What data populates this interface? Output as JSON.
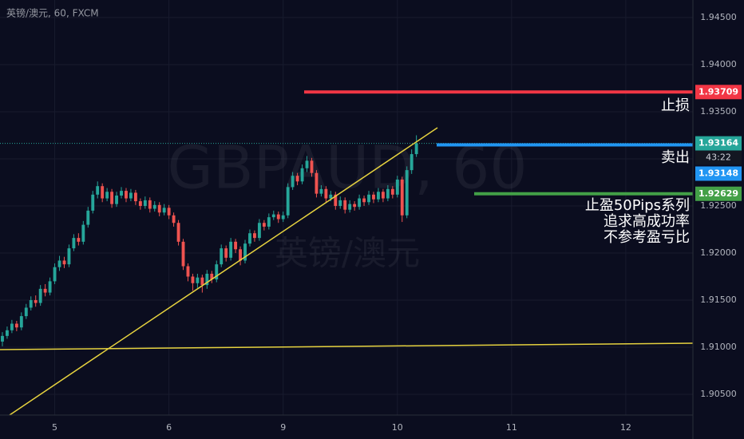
{
  "chart_data": {
    "type": "candlestick",
    "title": "英镑/澳元, 60, FXCM",
    "watermark": "GBPAUD, 60",
    "watermark_subtitle": "英镑/澳元",
    "xlim": [
      -0.5,
      145.1
    ],
    "xticks": [
      {
        "value": 11,
        "label": "5"
      },
      {
        "value": 35,
        "label": "6"
      },
      {
        "value": 59,
        "label": "9"
      },
      {
        "value": 83,
        "label": "10"
      },
      {
        "value": 107,
        "label": "11"
      },
      {
        "value": 131,
        "label": "12"
      }
    ],
    "ylim": [
      1.9028,
      1.94686
    ],
    "yticks": [
      {
        "value": 1.945,
        "label": "1.94500"
      },
      {
        "value": 1.94,
        "label": "1.94000"
      },
      {
        "value": 1.935,
        "label": "1.93500"
      },
      {
        "value": 1.93,
        "label": "1.93000"
      },
      {
        "value": 1.925,
        "label": "1.92500"
      },
      {
        "value": 1.92,
        "label": "1.92000"
      },
      {
        "value": 1.915,
        "label": "1.91500"
      },
      {
        "value": 1.91,
        "label": "1.91000"
      },
      {
        "value": 1.905,
        "label": "1.90500"
      }
    ],
    "grid": true,
    "up_color": "#26a69a",
    "down_color": "#ef5350",
    "open": [
      1.9106,
      1.9112,
      1.9118,
      1.9125,
      1.9121,
      1.9133,
      1.9142,
      1.915,
      1.9147,
      1.9162,
      1.9158,
      1.917,
      1.9185,
      1.9192,
      1.9188,
      1.9205,
      1.9216,
      1.9212,
      1.923,
      1.9245,
      1.9262,
      1.9271,
      1.9258,
      1.9265,
      1.9252,
      1.9261,
      1.9266,
      1.9258,
      1.9264,
      1.9255,
      1.925,
      1.9256,
      1.9247,
      1.9251,
      1.9243,
      1.9248,
      1.924,
      1.9232,
      1.9212,
      1.9186,
      1.9175,
      1.9168,
      1.9174,
      1.9166,
      1.9178,
      1.9172,
      1.9188,
      1.9205,
      1.9195,
      1.9212,
      1.9204,
      1.9192,
      1.921,
      1.9221,
      1.9216,
      1.9232,
      1.9228,
      1.9238,
      1.9241,
      1.9236,
      1.924,
      1.927,
      1.9282,
      1.9276,
      1.929,
      1.9298,
      1.9285,
      1.9263,
      1.9268,
      1.9258,
      1.9262,
      1.925,
      1.9256,
      1.9246,
      1.9252,
      1.9249,
      1.9258,
      1.9254,
      1.9262,
      1.9257,
      1.9265,
      1.9258,
      1.9268,
      1.9262,
      1.9278,
      1.924,
      1.9288,
      1.9305
    ],
    "high": [
      1.9116,
      1.9122,
      1.9129,
      1.9128,
      1.9137,
      1.9146,
      1.9154,
      1.9155,
      1.9166,
      1.9167,
      1.9174,
      1.9189,
      1.9197,
      1.9196,
      1.9209,
      1.922,
      1.9221,
      1.9234,
      1.9249,
      1.9266,
      1.9276,
      1.9274,
      1.9269,
      1.9268,
      1.9265,
      1.927,
      1.9269,
      1.9268,
      1.9267,
      1.9258,
      1.926,
      1.9259,
      1.9255,
      1.9254,
      1.9252,
      1.9251,
      1.9243,
      1.9235,
      1.9215,
      1.9189,
      1.9178,
      1.9178,
      1.9177,
      1.9182,
      1.9181,
      1.9192,
      1.9209,
      1.9208,
      1.9216,
      1.9215,
      1.9207,
      1.9214,
      1.9225,
      1.9224,
      1.9236,
      1.9235,
      1.9242,
      1.9245,
      1.9244,
      1.9244,
      1.9274,
      1.9286,
      1.9285,
      1.9294,
      1.9303,
      1.9301,
      1.9288,
      1.9272,
      1.9271,
      1.9266,
      1.9265,
      1.926,
      1.9259,
      1.9256,
      1.9255,
      1.9262,
      1.9261,
      1.9266,
      1.9265,
      1.9269,
      1.9268,
      1.9272,
      1.9271,
      1.9282,
      1.9281,
      1.9292,
      1.931,
      1.9325
    ],
    "low": [
      1.9101,
      1.9109,
      1.9115,
      1.9117,
      1.9118,
      1.913,
      1.9139,
      1.9143,
      1.9144,
      1.9154,
      1.9155,
      1.9167,
      1.9181,
      1.9184,
      1.9185,
      1.9202,
      1.9208,
      1.9209,
      1.9227,
      1.9242,
      1.9258,
      1.9254,
      1.9255,
      1.9248,
      1.9249,
      1.9258,
      1.9254,
      1.9255,
      1.9251,
      1.9246,
      1.9247,
      1.9243,
      1.9244,
      1.9239,
      1.924,
      1.9236,
      1.9228,
      1.9208,
      1.9182,
      1.917,
      1.916,
      1.9163,
      1.9158,
      1.9162,
      1.9168,
      1.9169,
      1.9185,
      1.9191,
      1.9192,
      1.92,
      1.9187,
      1.9189,
      1.9207,
      1.9212,
      1.9213,
      1.9224,
      1.9225,
      1.9235,
      1.9232,
      1.9233,
      1.9237,
      1.9267,
      1.9272,
      1.9273,
      1.9286,
      1.9281,
      1.9259,
      1.926,
      1.9254,
      1.9255,
      1.9246,
      1.9247,
      1.9242,
      1.9243,
      1.9245,
      1.9246,
      1.925,
      1.9251,
      1.9253,
      1.9254,
      1.9254,
      1.9255,
      1.9258,
      1.9259,
      1.9233,
      1.9237,
      1.9284,
      1.9302
    ],
    "close": [
      1.9112,
      1.9118,
      1.9125,
      1.9121,
      1.9133,
      1.9142,
      1.915,
      1.9147,
      1.9162,
      1.9158,
      1.917,
      1.9185,
      1.9192,
      1.9188,
      1.9205,
      1.9216,
      1.9212,
      1.923,
      1.9245,
      1.9262,
      1.9271,
      1.9258,
      1.9265,
      1.9252,
      1.9261,
      1.9266,
      1.9258,
      1.9264,
      1.9255,
      1.925,
      1.9256,
      1.9247,
      1.9251,
      1.9243,
      1.9248,
      1.924,
      1.9232,
      1.9212,
      1.9186,
      1.9175,
      1.9168,
      1.9174,
      1.9166,
      1.9178,
      1.9172,
      1.9188,
      1.9205,
      1.9195,
      1.9212,
      1.9204,
      1.9192,
      1.921,
      1.9221,
      1.9216,
      1.9232,
      1.9228,
      1.9238,
      1.9241,
      1.9236,
      1.924,
      1.927,
      1.9282,
      1.9276,
      1.929,
      1.9298,
      1.9285,
      1.9263,
      1.9268,
      1.9258,
      1.9262,
      1.925,
      1.9256,
      1.9246,
      1.9252,
      1.9249,
      1.9258,
      1.9254,
      1.9262,
      1.9257,
      1.9265,
      1.9258,
      1.9268,
      1.9262,
      1.9278,
      1.924,
      1.9288,
      1.9305,
      1.93164
    ],
    "last_price": {
      "value": 1.93164,
      "countdown": "43:22",
      "color": "#26a69a"
    },
    "levels": [
      {
        "name": "止损",
        "value": 1.93709,
        "color": "#f23645"
      },
      {
        "name": "卖出",
        "value": 1.93148,
        "color": "#2196f3"
      },
      {
        "name": "止盈50Pips系列",
        "value": 1.92629,
        "color": "#43a047",
        "notes": [
          "追求高成功率",
          "不参考盈亏比"
        ]
      }
    ]
  }
}
